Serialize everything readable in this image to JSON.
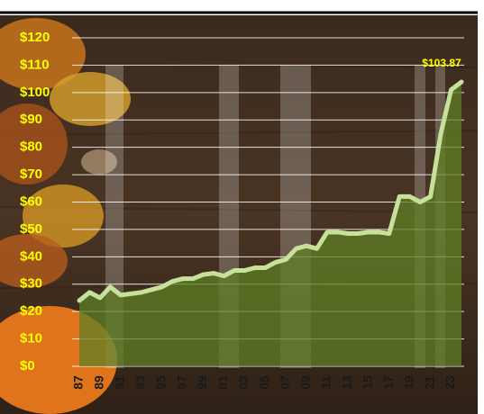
{
  "chart_data": {
    "type": "area",
    "categories": [
      "87",
      null,
      "89",
      null,
      "91",
      null,
      "93",
      null,
      "95",
      null,
      "97",
      null,
      "99",
      null,
      "01",
      null,
      "03",
      null,
      "05",
      null,
      "07",
      null,
      "09",
      null,
      "11",
      null,
      "13",
      null,
      "15",
      null,
      "17",
      null,
      "19",
      null,
      "21",
      null,
      "23",
      null
    ],
    "values": [
      24,
      27,
      25,
      29,
      26,
      26.5,
      27,
      28,
      29,
      31,
      32,
      32,
      33.5,
      34,
      33,
      35,
      35,
      36,
      36,
      38,
      39,
      43,
      44,
      43,
      49,
      49,
      48.5,
      48.5,
      49,
      49,
      48.5,
      62,
      62,
      60,
      62,
      85,
      101,
      103.87
    ],
    "value_labels": [
      null,
      null,
      null,
      null,
      null,
      null,
      null,
      null,
      null,
      null,
      null,
      null,
      null,
      null,
      null,
      null,
      null,
      null,
      null,
      null,
      null,
      null,
      null,
      null,
      null,
      null,
      null,
      null,
      null,
      null,
      null,
      null,
      null,
      null,
      null,
      null,
      null,
      "$103.87"
    ],
    "color": "#c6e29a",
    "fill_color": "#5f7f24",
    "ylim": [
      0,
      120
    ],
    "yticks": [
      {
        "value": 0,
        "label": "$0"
      },
      {
        "value": 10,
        "label": "$10"
      },
      {
        "value": 20,
        "label": "$20"
      },
      {
        "value": 30,
        "label": "$30"
      },
      {
        "value": 40,
        "label": "$40"
      },
      {
        "value": 50,
        "label": "$50"
      },
      {
        "value": 60,
        "label": "$60"
      },
      {
        "value": 70,
        "label": "$70"
      },
      {
        "value": 80,
        "label": "$80"
      },
      {
        "value": 90,
        "label": "$90"
      },
      {
        "value": 100,
        "label": "$100"
      },
      {
        "value": 110,
        "label": "$110"
      },
      {
        "value": 120,
        "label": "$120"
      }
    ],
    "grid": true
  }
}
